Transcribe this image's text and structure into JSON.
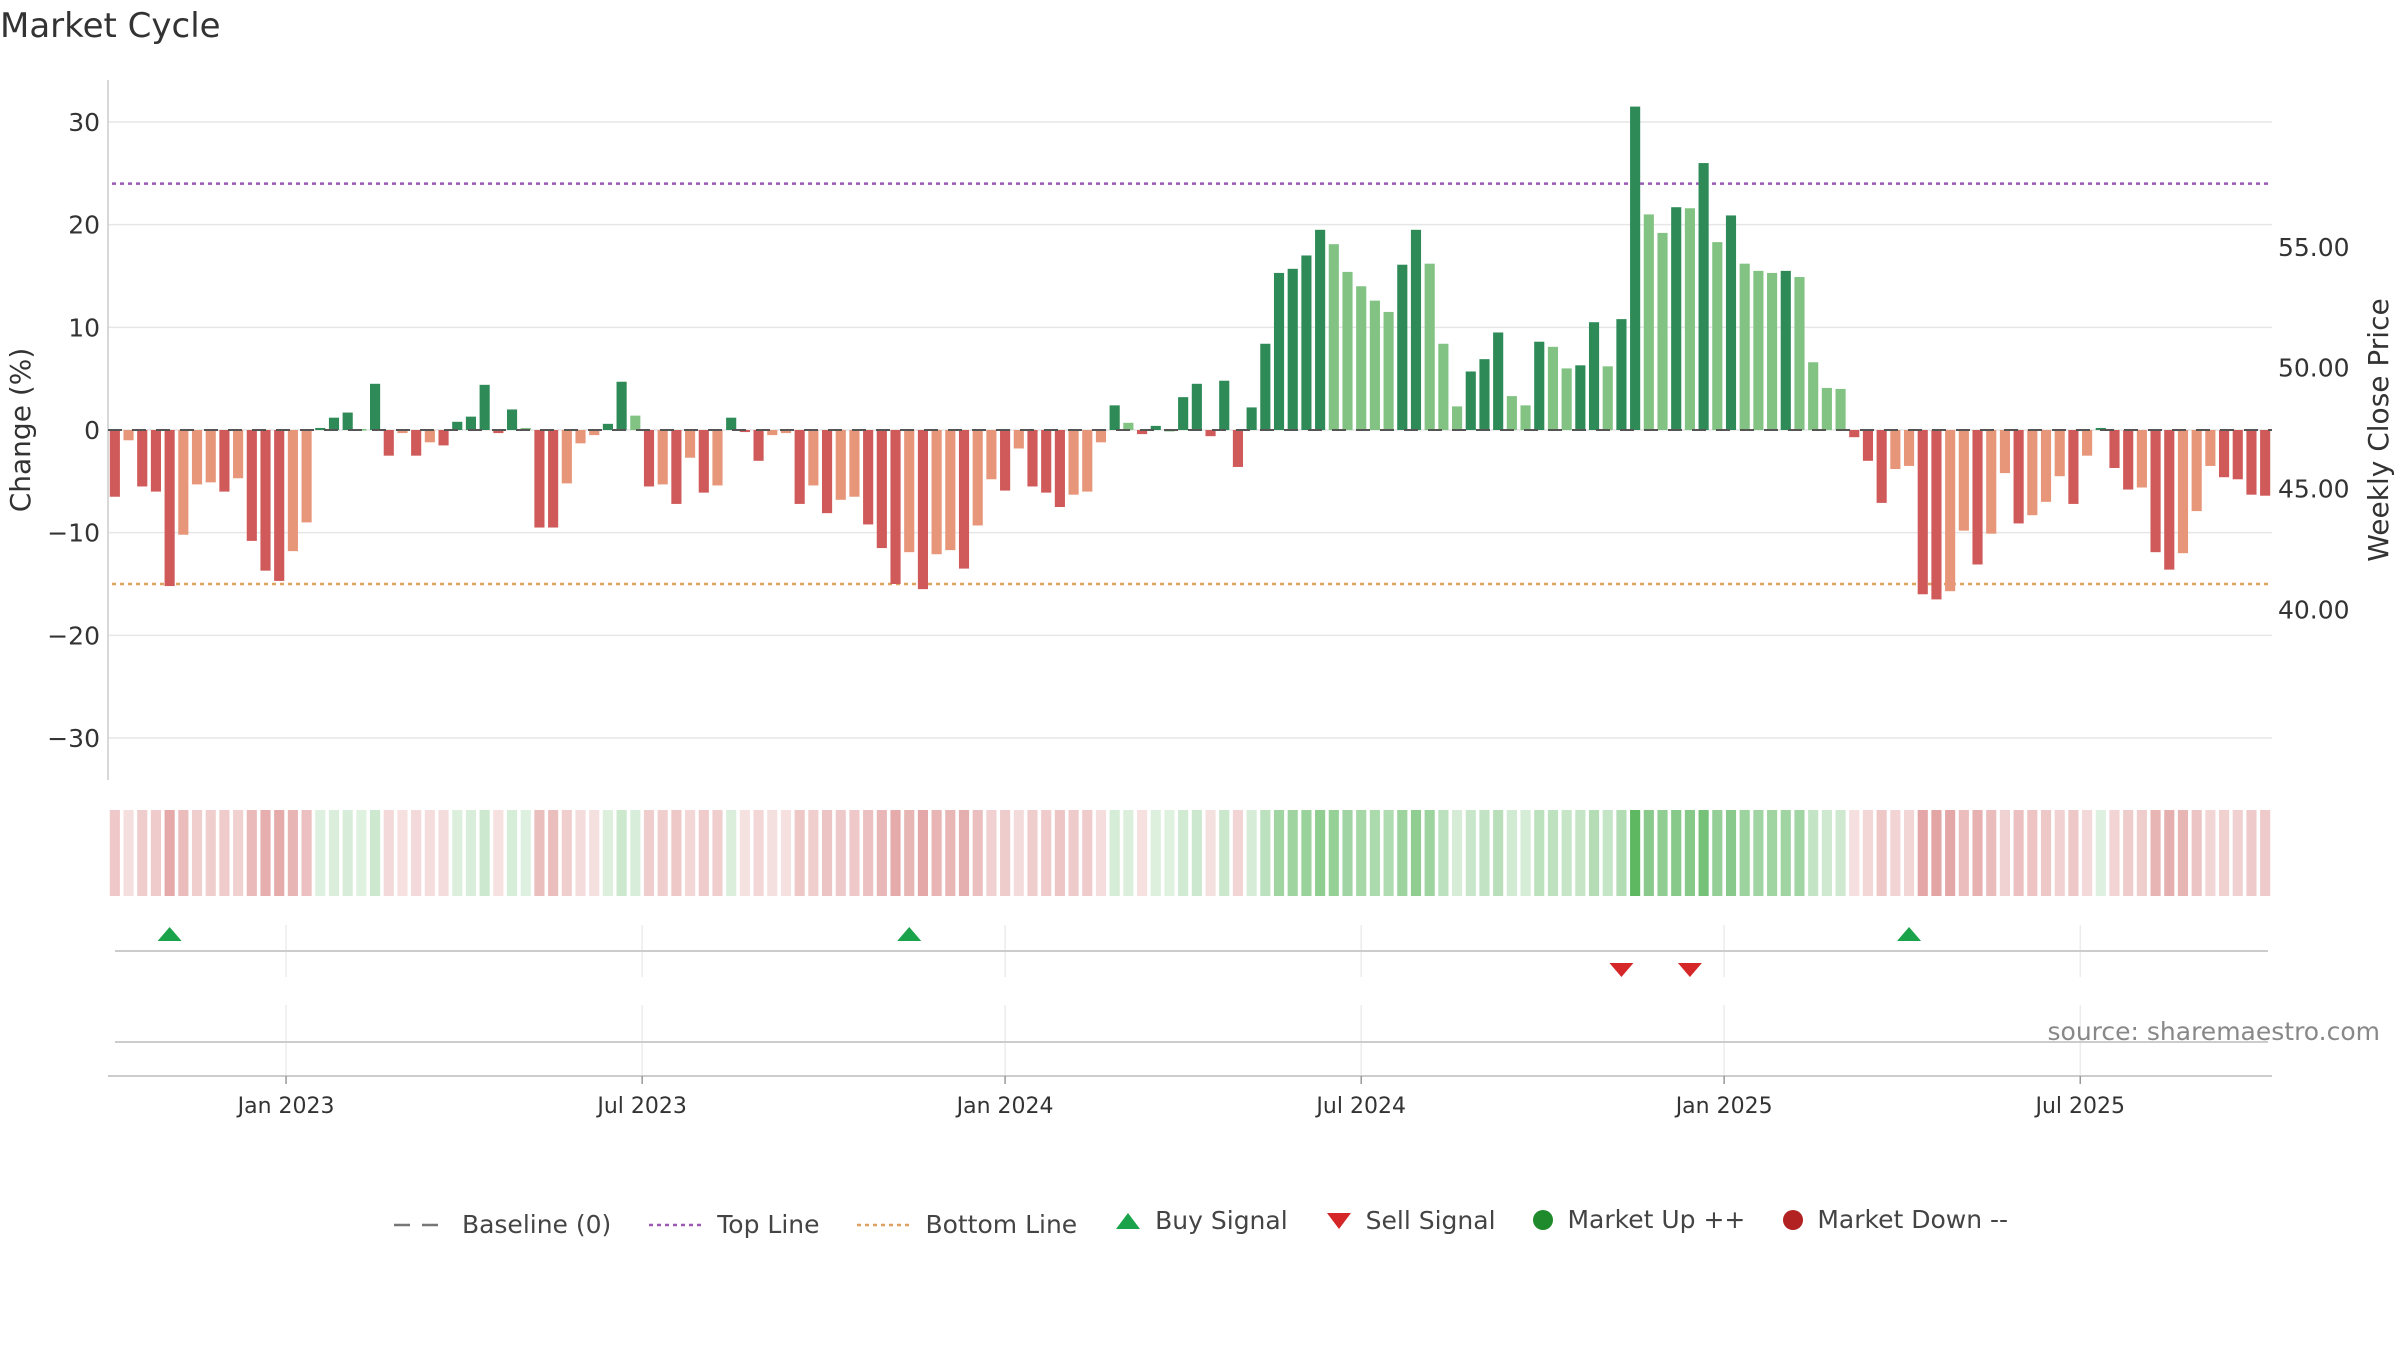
{
  "chart_data": {
    "type": "bar",
    "title": "Market Cycle",
    "ylabel": "Change (%)",
    "ylabel_right": "Weekly Close Price",
    "ylim": [
      -34,
      34
    ],
    "y_ticks": [
      "30",
      "20",
      "10",
      "0",
      "−10",
      "−20",
      "−30"
    ],
    "y_tick_values": [
      30,
      20,
      10,
      0,
      -10,
      -20,
      -30
    ],
    "right_ticks": [
      "55.00",
      "50.00",
      "45.00",
      "40.00"
    ],
    "right_tick_values": [
      55,
      50,
      45,
      40
    ],
    "right_ylim": [
      34.6,
      61.9
    ],
    "top_line": 24,
    "bottom_line": -15,
    "week_start": "2022-10-03",
    "x_ticks": [
      "Jan 2023",
      "Jul 2023",
      "Jan 2024",
      "Jul 2024",
      "Jan 2025",
      "Jul 2025"
    ],
    "x_tick_weeks": [
      13,
      39,
      65.5,
      91.5,
      118,
      144
    ],
    "values": [
      -6.5,
      -1,
      -5.5,
      -6,
      -15.2,
      -10.2,
      -5.3,
      -5.1,
      -6,
      -4.7,
      -10.8,
      -13.7,
      -14.7,
      -11.8,
      -9,
      0.2,
      1.2,
      1.7,
      0.1,
      4.5,
      -2.5,
      -0.3,
      -2.5,
      -1.2,
      -1.5,
      0.8,
      1.3,
      4.4,
      -0.3,
      2,
      0.2,
      -9.5,
      -9.5,
      -5.2,
      -1.3,
      -0.5,
      0.6,
      4.7,
      1.4,
      -5.5,
      -5.3,
      -7.2,
      -2.7,
      -6.1,
      -5.4,
      1.2,
      -0.2,
      -3,
      -0.5,
      -0.3,
      -7.2,
      -5.4,
      -8.1,
      -6.8,
      -6.5,
      -9.2,
      -11.5,
      -15,
      -11.9,
      -15.5,
      -12.1,
      -11.7,
      -13.5,
      -9.3,
      -4.8,
      -5.9,
      -1.8,
      -5.5,
      -6.1,
      -7.5,
      -6.3,
      -6,
      -1.2,
      2.4,
      0.7,
      -0.4,
      0.4,
      0,
      3.2,
      4.5,
      -0.6,
      4.8,
      -3.6,
      2.2,
      8.4,
      15.3,
      15.7,
      17,
      19.5,
      18.1,
      15.4,
      14,
      12.6,
      11.5,
      16.1,
      19.5,
      16.2,
      8.4,
      2.3,
      5.7,
      6.9,
      9.5,
      3.3,
      2.4,
      8.6,
      8.1,
      6,
      6.3,
      10.5,
      6.2,
      10.8,
      31.5,
      21,
      19.2,
      21.7,
      21.6,
      26,
      18.3,
      20.9,
      16.2,
      15.5,
      15.3,
      15.5,
      14.9,
      6.6,
      4.1,
      4,
      -0.7,
      -3,
      -7.1,
      -3.8,
      -3.5,
      -16,
      -16.5,
      -15.7,
      -9.8,
      -13.1,
      -10.1,
      -4.2,
      -9.1,
      -8.3,
      -7,
      -4.5,
      -7.2,
      -2.5,
      0.2,
      -3.7,
      -5.8,
      -5.6,
      -11.9,
      -13.6,
      -12,
      -7.9,
      -3.5,
      -4.6,
      -4.8,
      -6.3,
      -6.4
    ],
    "signals": [
      {
        "type": "buy",
        "week": 4
      },
      {
        "type": "buy",
        "week": 58
      },
      {
        "type": "sell",
        "week": 110
      },
      {
        "type": "sell",
        "week": 115
      },
      {
        "type": "buy",
        "week": 131
      }
    ],
    "colors": {
      "strong_up": "#2e8b57",
      "weak_up": "#82c384",
      "strong_down": "#d05a5a",
      "weak_down": "#e8967a",
      "top_line": "#9b59b6",
      "bottom_line": "#e0a060",
      "buy": "#1aa34a",
      "sell": "#d62728",
      "up_dot": "#1f8a2b",
      "down_dot": "#b22222"
    },
    "legend": [
      {
        "label": "Baseline (0)",
        "symbol": "dash-gray"
      },
      {
        "label": "Top Line",
        "symbol": "dot-purple"
      },
      {
        "label": "Bottom Line",
        "symbol": "dot-orange"
      },
      {
        "label": "Buy Signal",
        "symbol": "triangle-up-green"
      },
      {
        "label": "Sell Signal",
        "symbol": "triangle-down-red"
      },
      {
        "label": "Market Up ++",
        "symbol": "circle-green"
      },
      {
        "label": "Market Down --",
        "symbol": "circle-red"
      }
    ],
    "source": "source: sharemaestro.com"
  }
}
